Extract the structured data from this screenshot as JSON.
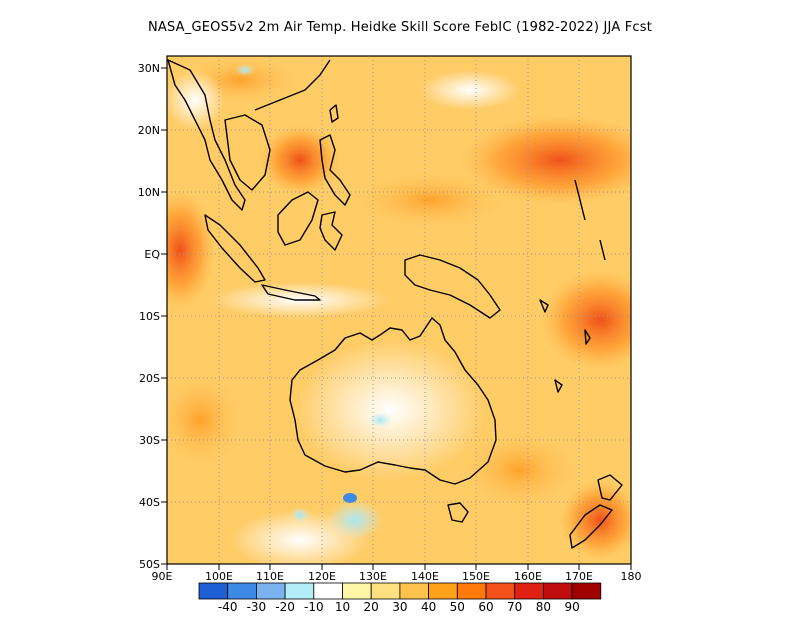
{
  "title": "NASA_GEOS5v2  2m Air Temp. Heidke Skill Score FebIC (1982-2022) JJA Fcst",
  "axes": {
    "lon_ticks": [
      "90E",
      "100E",
      "110E",
      "120E",
      "130E",
      "140E",
      "150E",
      "160E",
      "170E",
      "180"
    ],
    "lat_ticks": [
      "30N",
      "20N",
      "10N",
      "EQ",
      "10S",
      "20S",
      "30S",
      "40S",
      "50S"
    ]
  },
  "colorbar": {
    "labels": [
      "-40",
      "-30",
      "-20",
      "-10",
      "10",
      "20",
      "30",
      "40",
      "50",
      "60",
      "70",
      "80",
      "90"
    ],
    "colors": [
      "#1f5fd6",
      "#3c8ae6",
      "#7ab3f0",
      "#b3eef8",
      "#ffffff",
      "#fff6a8",
      "#ffe080",
      "#ffc34d",
      "#ffa21a",
      "#ff7a0a",
      "#f4501a",
      "#e02010",
      "#c00c0c",
      "#a00000"
    ]
  }
}
